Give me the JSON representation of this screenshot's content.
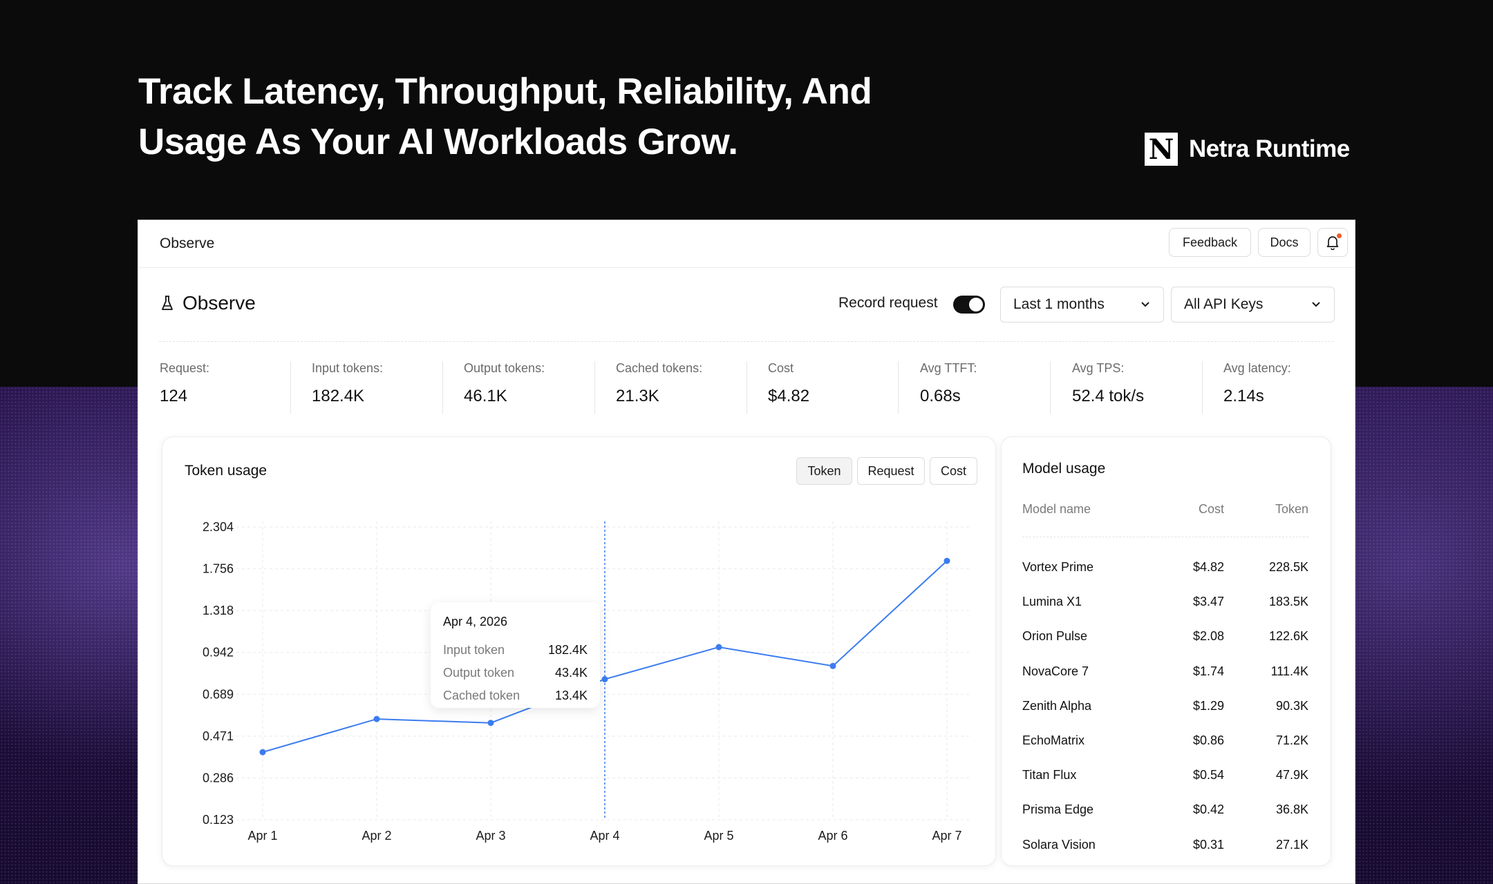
{
  "hero": {
    "headline_line1": "Track Latency, Throughput, Reliability, And",
    "headline_line2": "Usage As Your AI Workloads Grow.",
    "brand_letter": "N",
    "brand_name": "Netra Runtime"
  },
  "topbar": {
    "title": "Observe",
    "feedback_label": "Feedback",
    "docs_label": "Docs"
  },
  "header": {
    "title": "Observe",
    "record_label": "Record request",
    "record_enabled": true,
    "period_value": "Last 1 months",
    "api_keys_value": "All API Keys"
  },
  "metrics": [
    {
      "label": "Request:",
      "value": "124"
    },
    {
      "label": "Input tokens:",
      "value": "182.4K"
    },
    {
      "label": "Output tokens:",
      "value": "46.1K"
    },
    {
      "label": "Cached tokens:",
      "value": "21.3K"
    },
    {
      "label": "Cost",
      "value": "$4.82"
    },
    {
      "label": "Avg TTFT:",
      "value": "0.68s"
    },
    {
      "label": "Avg TPS:",
      "value": "52.4 tok/s"
    },
    {
      "label": "Avg latency:",
      "value": "2.14s"
    }
  ],
  "token_usage": {
    "title": "Token usage",
    "tabs": [
      "Token",
      "Request",
      "Cost"
    ],
    "active_tab": "Token",
    "accent_color": "#3b7cf0",
    "tooltip": {
      "date": "Apr 4, 2026",
      "rows": [
        {
          "label": "Input token",
          "value": "182.4K"
        },
        {
          "label": "Output token",
          "value": "43.4K"
        },
        {
          "label": "Cached token",
          "value": "13.4K"
        }
      ]
    }
  },
  "chart_data": {
    "type": "line",
    "categories": [
      "Apr 1",
      "Apr 2",
      "Apr 3",
      "Apr 4",
      "Apr 5",
      "Apr 6",
      "Apr 7"
    ],
    "y_ticks": [
      "2.304",
      "1.756",
      "1.318",
      "0.942",
      "0.689",
      "0.471",
      "0.286",
      "0.123"
    ],
    "values": [
      0.4,
      0.56,
      0.54,
      0.78,
      0.99,
      0.86,
      1.86
    ],
    "highlight_category": "Apr 4",
    "grid": true,
    "title": "",
    "xlabel": "",
    "ylabel": ""
  },
  "model_usage": {
    "title": "Model usage",
    "columns": {
      "name": "Model name",
      "cost": "Cost",
      "token": "Token"
    },
    "rows": [
      {
        "name": "Vortex Prime",
        "cost": "$4.82",
        "token": "228.5K"
      },
      {
        "name": "Lumina X1",
        "cost": "$3.47",
        "token": "183.5K"
      },
      {
        "name": "Orion Pulse",
        "cost": "$2.08",
        "token": "122.6K"
      },
      {
        "name": "NovaCore 7",
        "cost": "$1.74",
        "token": "111.4K"
      },
      {
        "name": "Zenith Alpha",
        "cost": "$1.29",
        "token": "90.3K"
      },
      {
        "name": "EchoMatrix",
        "cost": "$0.86",
        "token": "71.2K"
      },
      {
        "name": "Titan Flux",
        "cost": "$0.54",
        "token": "47.9K"
      },
      {
        "name": "Prisma Edge",
        "cost": "$0.42",
        "token": "36.8K"
      },
      {
        "name": "Solara Vision",
        "cost": "$0.31",
        "token": "27.1K"
      }
    ]
  },
  "icons": {
    "observe": "flask-icon",
    "bell": "bell-icon",
    "chevron": "chevron-down-icon"
  }
}
